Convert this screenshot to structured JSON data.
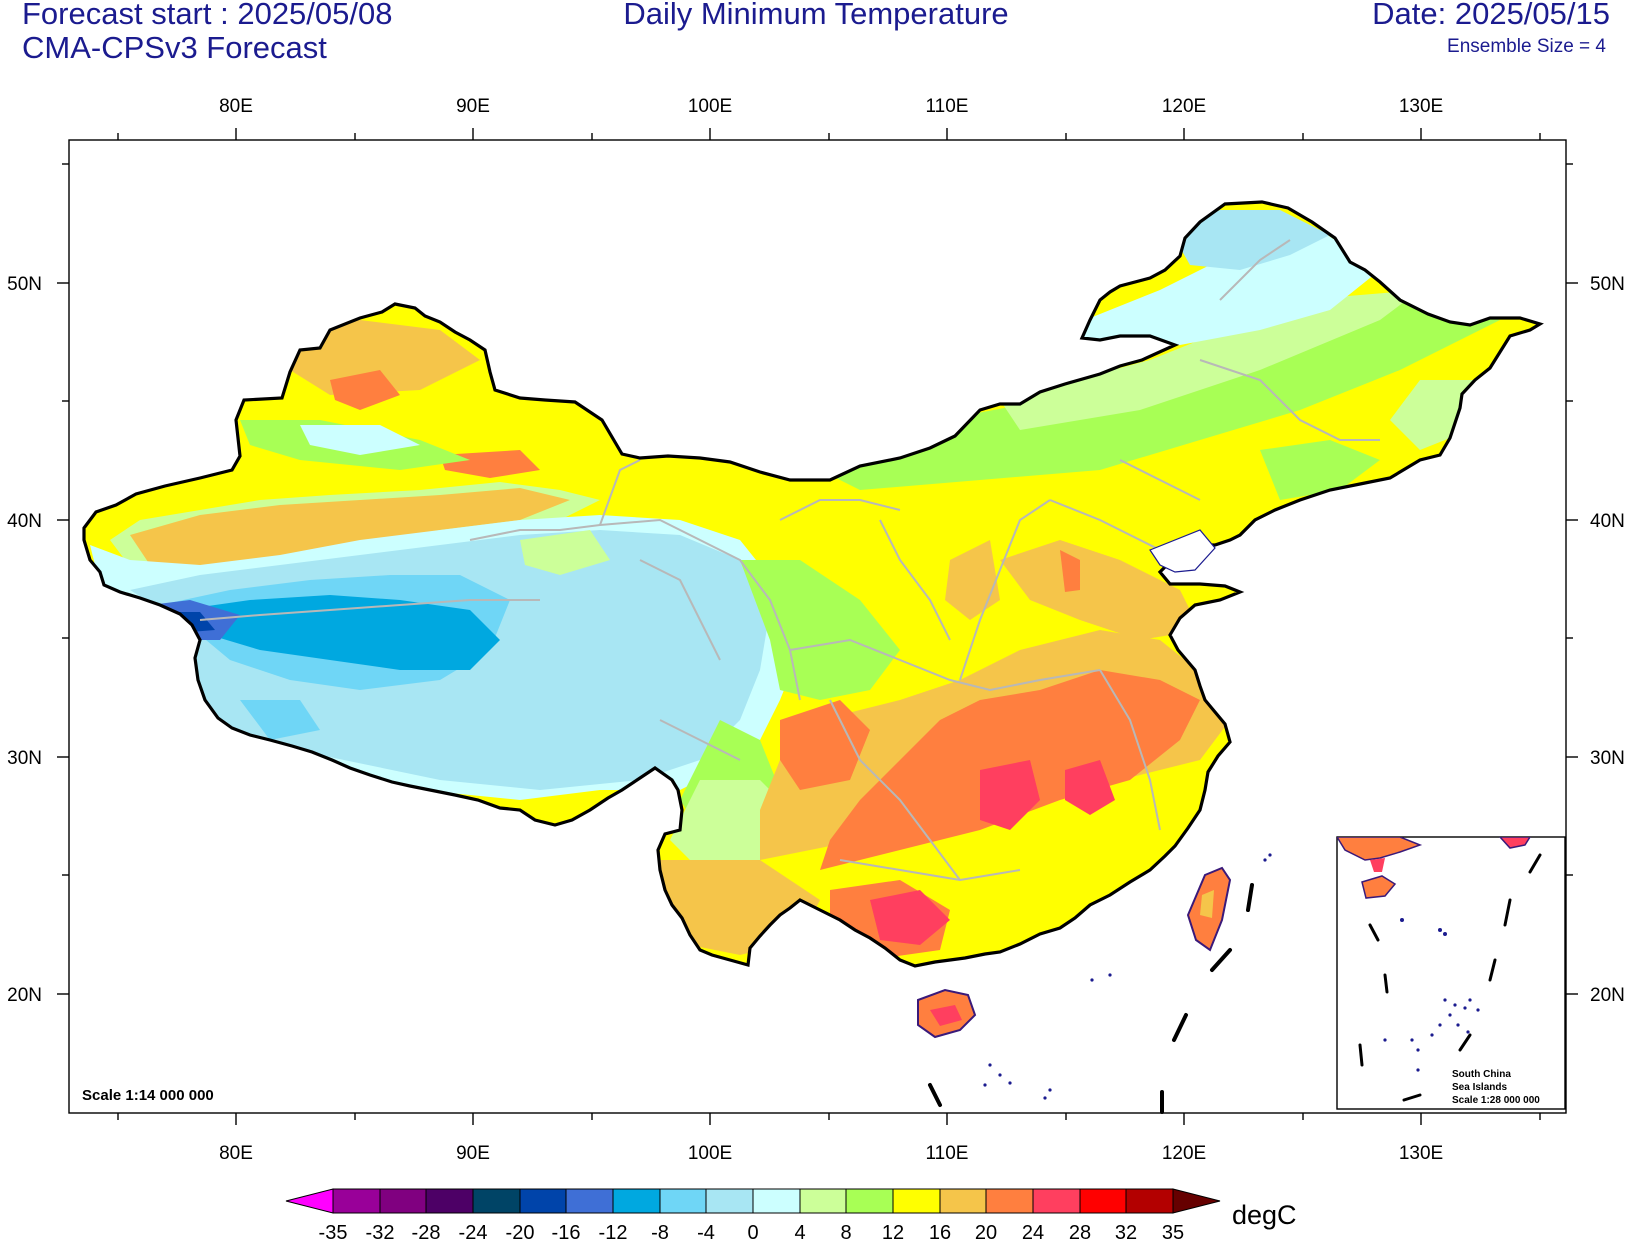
{
  "header": {
    "forecast_start": "Forecast start : 2025/05/08",
    "model": "CMA-CPSv3 Forecast",
    "title": "Daily Minimum Temperature",
    "date": "Date: 2025/05/15",
    "ensemble": "Ensemble Size = 4"
  },
  "map": {
    "lon_labels": [
      "80E",
      "90E",
      "100E",
      "110E",
      "120E",
      "130E"
    ],
    "lat_labels": [
      "50N",
      "40N",
      "30N",
      "20N"
    ],
    "scale_note": "Scale 1:14 000 000",
    "inset": {
      "line1": "South China",
      "line2": "Sea Islands",
      "line3": "Scale 1:28 000 000"
    }
  },
  "colorbar": {
    "units": "degC",
    "levels": [
      "-35",
      "-32",
      "-28",
      "-24",
      "-20",
      "-16",
      "-12",
      "-8",
      "-4",
      "0",
      "4",
      "8",
      "12",
      "16",
      "20",
      "24",
      "28",
      "32",
      "35"
    ],
    "colors": [
      "#ff00ff",
      "#990099",
      "#800080",
      "#4d0066",
      "#004466",
      "#0044aa",
      "#3f6fd6",
      "#00a8e0",
      "#6fd6f6",
      "#a8e6f3",
      "#ccffff",
      "#ccff99",
      "#a8ff55",
      "#ffff00",
      "#f5c54a",
      "#ff7f3f",
      "#ff3f5f",
      "#ff0000",
      "#b30000",
      "#660000"
    ]
  }
}
